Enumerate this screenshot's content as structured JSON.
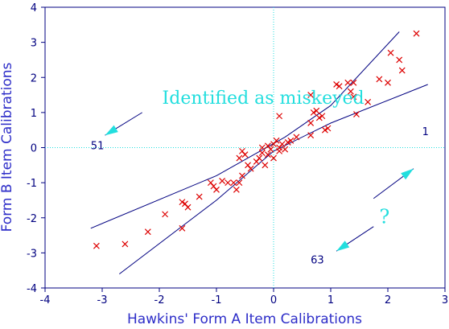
{
  "chart_data": {
    "type": "scatter",
    "xlabel": "Hawkins' Form A Item Calibrations",
    "ylabel": "Form B Item Calibrations",
    "xlim": [
      -4,
      3
    ],
    "ylim": [
      -4,
      4
    ],
    "xticks": [
      -4,
      -3,
      -2,
      -1,
      0,
      1,
      2,
      3
    ],
    "yticks": [
      -4,
      -3,
      -2,
      -1,
      0,
      1,
      2,
      3,
      4
    ],
    "grid": false,
    "reference_lines": {
      "x": 0,
      "y": 0,
      "style": "dotted",
      "color": "#22dede"
    },
    "marker": "x",
    "marker_color": "#dd0000",
    "band_color": "#000080",
    "points": [
      [
        -3.1,
        -2.8
      ],
      [
        -2.6,
        -2.75
      ],
      [
        -2.2,
        -2.4
      ],
      [
        -1.9,
        -1.9
      ],
      [
        -1.6,
        -1.55
      ],
      [
        -1.55,
        -1.6
      ],
      [
        -1.5,
        -1.7
      ],
      [
        -1.6,
        -2.3
      ],
      [
        -1.3,
        -1.4
      ],
      [
        -1.1,
        -1.0
      ],
      [
        -1.05,
        -1.1
      ],
      [
        -1.0,
        -1.2
      ],
      [
        -0.9,
        -0.95
      ],
      [
        -0.8,
        -1.0
      ],
      [
        -0.7,
        -1.0
      ],
      [
        -0.65,
        -1.2
      ],
      [
        -0.6,
        -1.0
      ],
      [
        -0.55,
        -0.8
      ],
      [
        -0.6,
        -0.3
      ],
      [
        -0.5,
        -0.2
      ],
      [
        -0.55,
        -0.1
      ],
      [
        -0.45,
        -0.5
      ],
      [
        -0.4,
        -0.6
      ],
      [
        -0.3,
        -0.4
      ],
      [
        -0.25,
        -0.3
      ],
      [
        -0.2,
        -0.15
      ],
      [
        -0.15,
        -0.5
      ],
      [
        -0.1,
        -0.2
      ],
      [
        -0.2,
        0.0
      ],
      [
        -0.1,
        0.05
      ],
      [
        -0.05,
        -0.05
      ],
      [
        0.0,
        -0.3
      ],
      [
        0.0,
        0.1
      ],
      [
        0.05,
        0.2
      ],
      [
        0.1,
        0.0
      ],
      [
        0.1,
        -0.1
      ],
      [
        0.15,
        0.1
      ],
      [
        0.2,
        -0.05
      ],
      [
        0.25,
        0.15
      ],
      [
        0.3,
        0.2
      ],
      [
        0.1,
        0.9
      ],
      [
        0.4,
        0.3
      ],
      [
        0.65,
        0.35
      ],
      [
        0.65,
        0.7
      ],
      [
        0.7,
        1.0
      ],
      [
        0.75,
        1.05
      ],
      [
        0.8,
        0.85
      ],
      [
        0.85,
        0.9
      ],
      [
        0.65,
        1.5
      ],
      [
        0.9,
        0.5
      ],
      [
        0.95,
        0.55
      ],
      [
        1.1,
        1.8
      ],
      [
        1.15,
        1.75
      ],
      [
        1.3,
        1.85
      ],
      [
        1.35,
        1.6
      ],
      [
        1.4,
        1.45
      ],
      [
        1.4,
        1.85
      ],
      [
        1.45,
        0.95
      ],
      [
        1.65,
        1.3
      ],
      [
        1.85,
        1.95
      ],
      [
        2.0,
        1.85
      ],
      [
        2.05,
        2.7
      ],
      [
        2.2,
        2.5
      ],
      [
        2.25,
        2.2
      ],
      [
        2.5,
        3.25
      ]
    ],
    "upper_band": [
      [
        -3.2,
        -2.3
      ],
      [
        -1.0,
        -0.8
      ],
      [
        0.2,
        0.3
      ],
      [
        1.0,
        1.2
      ],
      [
        2.2,
        3.3
      ]
    ],
    "lower_band": [
      [
        -2.7,
        -3.6
      ],
      [
        -1.0,
        -1.5
      ],
      [
        0.0,
        -0.1
      ],
      [
        1.0,
        0.7
      ],
      [
        2.7,
        1.8
      ]
    ],
    "annotations": [
      {
        "text": "Identified as miskeyed",
        "at": [
          -1.95,
          1.25
        ],
        "color": "#22dede"
      },
      {
        "text": "51",
        "at": [
          -3.2,
          -0.05
        ],
        "color": "#000080"
      },
      {
        "text": "1",
        "at": [
          2.6,
          0.35
        ],
        "color": "#000080"
      },
      {
        "text": "?",
        "at": [
          1.85,
          -2.15
        ],
        "color": "#22dede"
      },
      {
        "text": "63",
        "at": [
          0.65,
          -3.3
        ],
        "color": "#000080"
      }
    ],
    "arrows": [
      {
        "from": [
          -2.3,
          1.0
        ],
        "to": [
          -2.95,
          0.35
        ]
      },
      {
        "from": [
          1.75,
          -1.45
        ],
        "to": [
          2.45,
          -0.6
        ]
      },
      {
        "from": [
          1.75,
          -2.25
        ],
        "to": [
          1.1,
          -2.95
        ]
      }
    ]
  }
}
